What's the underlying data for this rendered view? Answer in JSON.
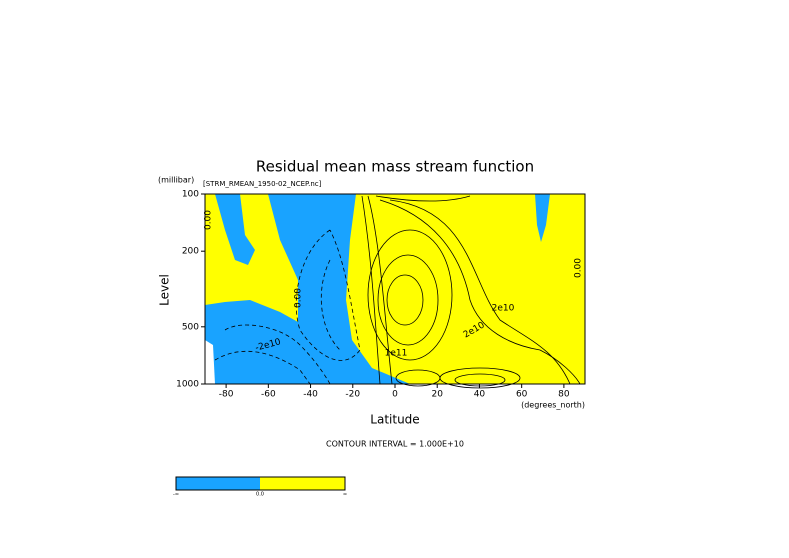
{
  "chart_data": {
    "type": "contour",
    "title": "Residual mean mass stream function",
    "subtitle": "[STRM_RMEAN_1950-02_NCEP.nc]",
    "y_unit": "(millibar)",
    "y_label": "Level",
    "x_label": "Latitude",
    "x_unit": "(degrees_north)",
    "note": "CONTOUR INTERVAL = 1.000E+10",
    "xlim": [
      -90,
      90
    ],
    "xticks": [
      -80,
      -60,
      -40,
      -20,
      0,
      20,
      40,
      60,
      80
    ],
    "ylim": [
      1000,
      100
    ],
    "yticks": [
      100,
      200,
      500,
      1000
    ],
    "y_scale": "log",
    "colors": {
      "negative": "#19a3ff",
      "positive": "#ffff00"
    },
    "colorbar_labels": [
      "-∞",
      "0.0",
      "∞"
    ],
    "contour_labels": [
      "0.00",
      "-2e10",
      "0.00",
      "2e10",
      "1e11",
      "2e10",
      "0.00"
    ]
  }
}
